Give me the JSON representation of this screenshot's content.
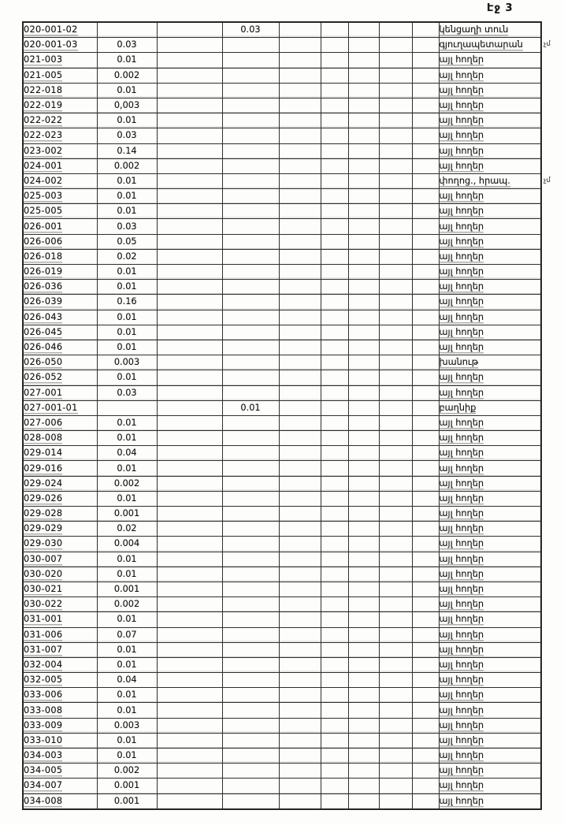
{
  "page": {
    "label": "Էջ 3"
  },
  "table": {
    "rows": [
      {
        "code": "020-001-02",
        "v1": "",
        "v2": "0.03",
        "name": "կենցաղի տուն"
      },
      {
        "code": "020-001-03",
        "v1": "0.03",
        "v2": "",
        "name": "գյուղապետարան"
      },
      {
        "code": "021-003",
        "v1": "0.01",
        "v2": "",
        "name": "այլ հողեր"
      },
      {
        "code": "021-005",
        "v1": "0.002",
        "v2": "",
        "name": "այլ հողեր"
      },
      {
        "code": "022-018",
        "v1": "0.01",
        "v2": "",
        "name": "այլ հողեր"
      },
      {
        "code": "022-019",
        "v1": "0,003",
        "v2": "",
        "name": "այլ հողեր"
      },
      {
        "code": "022-022",
        "v1": "0.01",
        "v2": "",
        "name": "այլ հողեր"
      },
      {
        "code": "022-023",
        "v1": "0.03",
        "v2": "",
        "name": "այլ հողեր"
      },
      {
        "code": "023-002",
        "v1": "0.14",
        "v2": "",
        "name": "այլ հողեր"
      },
      {
        "code": "024-001",
        "v1": "0.002",
        "v2": "",
        "name": "այլ հողեր"
      },
      {
        "code": "024-002",
        "v1": "0.01",
        "v2": "",
        "name": "փողոց., հրապ."
      },
      {
        "code": "025-003",
        "v1": "0.01",
        "v2": "",
        "name": "այլ հողեր"
      },
      {
        "code": "025-005",
        "v1": "0.01",
        "v2": "",
        "name": "այլ հողեր"
      },
      {
        "code": "026-001",
        "v1": "0.03",
        "v2": "",
        "name": "այլ հողեր"
      },
      {
        "code": "026-006",
        "v1": "0.05",
        "v2": "",
        "name": "այլ հողեր"
      },
      {
        "code": "026-018",
        "v1": "0.02",
        "v2": "",
        "name": "այլ հողեր"
      },
      {
        "code": "026-019",
        "v1": "0.01",
        "v2": "",
        "name": "այլ հողեր"
      },
      {
        "code": "026-036",
        "v1": "0.01",
        "v2": "",
        "name": "այլ հողեր"
      },
      {
        "code": "026-039",
        "v1": "0.16",
        "v2": "",
        "name": "այլ հողեր"
      },
      {
        "code": "026-043",
        "v1": "0.01",
        "v2": "",
        "name": "այլ հողեր"
      },
      {
        "code": "026-045",
        "v1": "0.01",
        "v2": "",
        "name": "այլ հողեր"
      },
      {
        "code": "026-046",
        "v1": "0.01",
        "v2": "",
        "name": "այլ հողեր"
      },
      {
        "code": "026-050",
        "v1": "0.003",
        "v2": "",
        "name": "խանութ"
      },
      {
        "code": "026-052",
        "v1": "0.01",
        "v2": "",
        "name": "այլ հողեր"
      },
      {
        "code": "027-001",
        "v1": "0.03",
        "v2": "",
        "name": "այլ հողեր"
      },
      {
        "code": "027-001-01",
        "v1": "",
        "v2": "0.01",
        "name": "բաղնիք"
      },
      {
        "code": "027-006",
        "v1": "0.01",
        "v2": "",
        "name": "այլ հողեր"
      },
      {
        "code": "028-008",
        "v1": "0.01",
        "v2": "",
        "name": "այլ հողեր"
      },
      {
        "code": "029-014",
        "v1": "0.04",
        "v2": "",
        "name": "այլ հողեր"
      },
      {
        "code": "029-016",
        "v1": "0.01",
        "v2": "",
        "name": "այլ հողեր"
      },
      {
        "code": "029-024",
        "v1": "0.002",
        "v2": "",
        "name": "այլ հողեր"
      },
      {
        "code": "029-026",
        "v1": "0.01",
        "v2": "",
        "name": "այլ հողեր"
      },
      {
        "code": "029-028",
        "v1": "0.001",
        "v2": "",
        "name": "այլ հողեր"
      },
      {
        "code": "029-029",
        "v1": "0.02",
        "v2": "",
        "name": "այլ հողեր"
      },
      {
        "code": "029-030",
        "v1": "0.004",
        "v2": "",
        "name": "այլ հողեր"
      },
      {
        "code": "030-007",
        "v1": "0.01",
        "v2": "",
        "name": "այլ հողեր"
      },
      {
        "code": "030-020",
        "v1": "0.01",
        "v2": "",
        "name": "այլ հողեր"
      },
      {
        "code": "030-021",
        "v1": "0.001",
        "v2": "",
        "name": "այլ հողեր"
      },
      {
        "code": "030-022",
        "v1": "0.002",
        "v2": "",
        "name": "այլ հողեր"
      },
      {
        "code": "031-001",
        "v1": "0.01",
        "v2": "",
        "name": "այլ հողեր"
      },
      {
        "code": "031-006",
        "v1": "0.07",
        "v2": "",
        "name": "այլ հողեր"
      },
      {
        "code": "031-007",
        "v1": "0.01",
        "v2": "",
        "name": "այլ հողեր"
      },
      {
        "code": "032-004",
        "v1": "0.01",
        "v2": "",
        "name": "այլ հողեր"
      },
      {
        "code": "032-005",
        "v1": "0.04",
        "v2": "",
        "name": "այլ հողեր"
      },
      {
        "code": "033-006",
        "v1": "0.01",
        "v2": "",
        "name": "այլ հողեր"
      },
      {
        "code": "033-008",
        "v1": "0.01",
        "v2": "",
        "name": "այլ հողեր"
      },
      {
        "code": "033-009",
        "v1": "0.003",
        "v2": "",
        "name": "այլ հողեր"
      },
      {
        "code": "033-010",
        "v1": "0.01",
        "v2": "",
        "name": "այլ հողեր"
      },
      {
        "code": "034-003",
        "v1": "0.01",
        "v2": "",
        "name": "այլ հողեր"
      },
      {
        "code": "034-005",
        "v1": "0.002",
        "v2": "",
        "name": "այլ հողեր"
      },
      {
        "code": "034-007",
        "v1": "0.001",
        "v2": "",
        "name": "այլ հողեր"
      },
      {
        "code": "034-008",
        "v1": "0.001",
        "v2": "",
        "name": "այլ հողեր"
      }
    ]
  },
  "margin_notes": [
    {
      "text": "չմ",
      "row_index": 1
    },
    {
      "text": "չմ",
      "row_index": 10
    }
  ]
}
